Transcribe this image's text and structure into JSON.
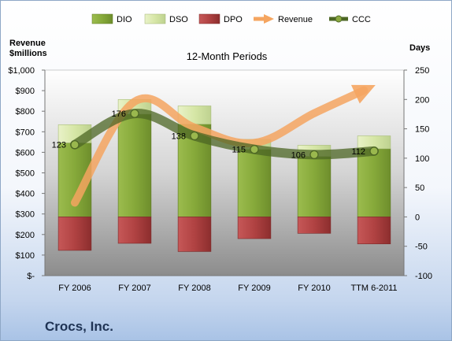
{
  "chart_data": {
    "type": "bar",
    "title": "12-Month Periods",
    "left_axis": {
      "title_line1": "Revenue",
      "title_line2": "$millions",
      "ylim": [
        0,
        1000
      ],
      "ticks": [
        0,
        100,
        200,
        300,
        400,
        500,
        600,
        700,
        800,
        900,
        1000
      ],
      "tick_labels": [
        "$-",
        "$100",
        "$200",
        "$300",
        "$400",
        "$500",
        "$600",
        "$700",
        "$800",
        "$900",
        "$1,000"
      ]
    },
    "right_axis": {
      "title": "Days",
      "ylim": [
        -100,
        250
      ],
      "ticks": [
        -100,
        -50,
        0,
        50,
        100,
        150,
        200,
        250
      ],
      "tick_labels": [
        "-100",
        "-50",
        "0",
        "50",
        "100",
        "150",
        "200",
        "250"
      ]
    },
    "categories": [
      "FY 2006",
      "FY 2007",
      "FY 2008",
      "FY 2009",
      "FY 2010",
      "TTM 6-2011"
    ],
    "series": [
      {
        "name": "DIO",
        "kind": "stacked-bar-positive",
        "axis": "right",
        "color": "#8aa840",
        "values": [
          126,
          175,
          158,
          115,
          103,
          116
        ]
      },
      {
        "name": "DSO",
        "kind": "stacked-bar-positive",
        "axis": "right",
        "color": "#d6e6a6",
        "values": [
          31,
          25,
          31,
          17,
          19,
          22
        ]
      },
      {
        "name": "DPO",
        "kind": "stacked-bar-negative",
        "axis": "right",
        "color": "#b84848",
        "values": [
          -57,
          -45,
          -59,
          -37,
          -28,
          -46
        ]
      },
      {
        "name": "Revenue",
        "kind": "line-arrow",
        "axis": "left",
        "color": "#f5a560",
        "values": [
          355,
          847,
          721,
          646,
          790,
          924
        ]
      },
      {
        "name": "CCC",
        "kind": "line-markers",
        "axis": "right",
        "color": "#4c6624",
        "values": [
          123,
          176,
          138,
          115,
          106,
          112
        ]
      }
    ],
    "ccc_labels": [
      "123",
      "176",
      "138",
      "115",
      "106",
      "112"
    ],
    "grid": false,
    "legend_position": "top"
  },
  "footer": {
    "company": "Crocs, Inc."
  }
}
